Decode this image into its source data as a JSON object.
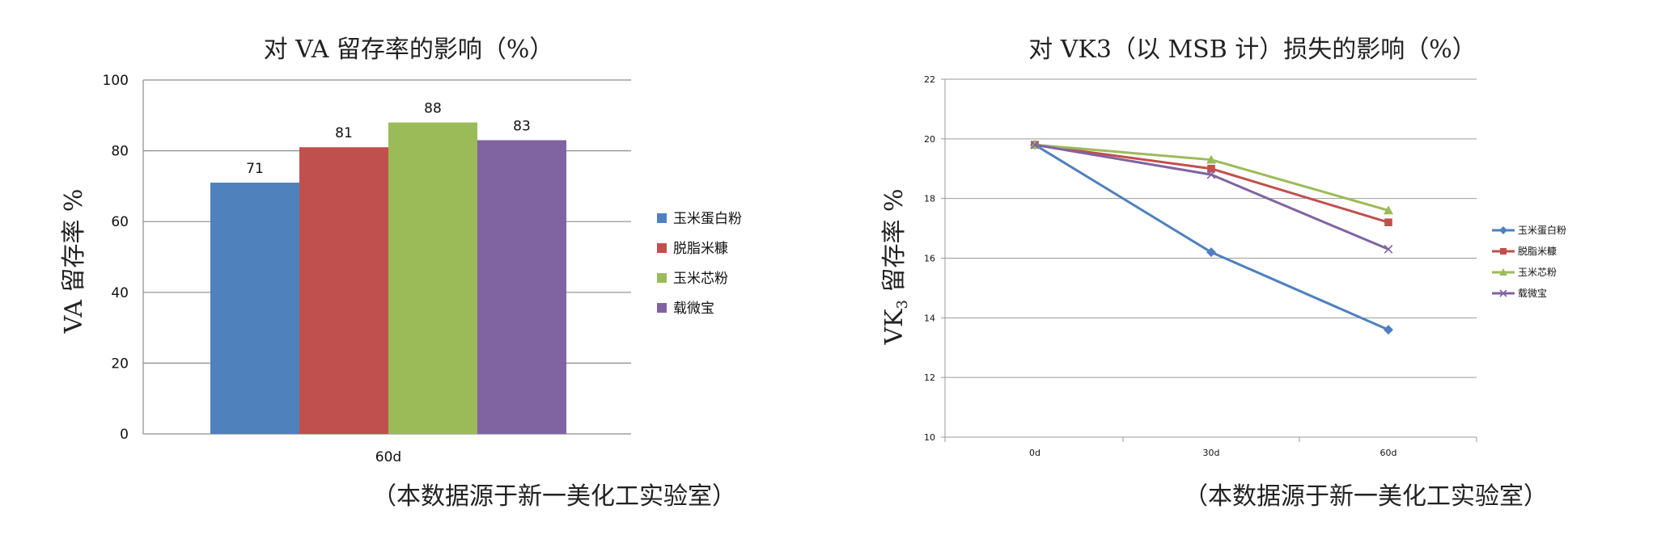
{
  "chart_data": [
    {
      "type": "bar",
      "title": "对 VA 留存率的影响（%）",
      "ylabel": "VA 留存率 %",
      "categories": [
        "60d"
      ],
      "ylim": [
        0,
        100
      ],
      "yticks": [
        "0",
        "20",
        "40",
        "60",
        "80",
        "100"
      ],
      "grid": true,
      "legend_position": "right",
      "series": [
        {
          "name": "玉米蛋白粉",
          "values": [
            71
          ],
          "color": "#4F81BD"
        },
        {
          "name": "脱脂米糠",
          "values": [
            81
          ],
          "color": "#C0504D"
        },
        {
          "name": "玉米芯粉",
          "values": [
            88
          ],
          "color": "#9BBB59"
        },
        {
          "name": "载微宝",
          "values": [
            83
          ],
          "color": "#8064A2"
        }
      ],
      "source_note": "（本数据源于新一美化工实验室）"
    },
    {
      "type": "line",
      "title": "对 VK3（以 MSB 计）损失的影响（%）",
      "ylabel_main": "VK",
      "ylabel_sub": "3",
      "ylabel_rest": " 留存率 %",
      "categories": [
        "0d",
        "30d",
        "60d"
      ],
      "ylim": [
        10,
        22
      ],
      "yticks": [
        "10",
        "12",
        "14",
        "16",
        "18",
        "20",
        "22"
      ],
      "grid": true,
      "legend_position": "right",
      "series": [
        {
          "name": "玉米蛋白粉",
          "values": [
            19.8,
            16.2,
            13.6
          ],
          "color": "#4F81BD",
          "marker": "diamond"
        },
        {
          "name": "脱脂米糠",
          "values": [
            19.8,
            19.0,
            17.2
          ],
          "color": "#C0504D",
          "marker": "square"
        },
        {
          "name": "玉米芯粉",
          "values": [
            19.8,
            19.3,
            17.6
          ],
          "color": "#9BBB59",
          "marker": "triangle"
        },
        {
          "name": "载微宝",
          "values": [
            19.8,
            18.8,
            16.3
          ],
          "color": "#8064A2",
          "marker": "x"
        }
      ],
      "source_note": "（本数据源于新一美化工实验室）"
    }
  ]
}
